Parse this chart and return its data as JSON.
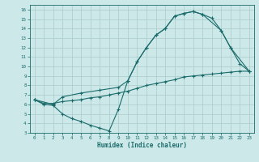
{
  "xlabel": "Humidex (Indice chaleur)",
  "bg_color": "#cce8e8",
  "grid_color": "#aacccc",
  "line_color": "#1a6b6b",
  "xlim": [
    -0.5,
    23.5
  ],
  "ylim": [
    3,
    16.5
  ],
  "xticks": [
    0,
    1,
    2,
    3,
    4,
    5,
    6,
    7,
    8,
    9,
    10,
    11,
    12,
    13,
    14,
    15,
    16,
    17,
    18,
    19,
    20,
    21,
    22,
    23
  ],
  "yticks": [
    3,
    4,
    5,
    6,
    7,
    8,
    9,
    10,
    11,
    12,
    13,
    14,
    15,
    16
  ],
  "curve1_x": [
    0,
    1,
    2,
    3,
    4,
    5,
    6,
    7,
    8,
    9,
    10,
    11,
    12,
    13,
    14,
    15,
    16,
    17,
    18,
    19,
    20,
    21,
    22,
    23
  ],
  "curve1_y": [
    6.5,
    6.0,
    5.9,
    5.0,
    4.5,
    4.2,
    3.8,
    3.5,
    3.2,
    5.5,
    8.5,
    10.5,
    12.0,
    13.3,
    14.0,
    15.3,
    15.6,
    15.8,
    15.5,
    15.1,
    13.8,
    12.0,
    10.3,
    9.5
  ],
  "curve2_x": [
    0,
    2,
    3,
    5,
    7,
    9,
    10,
    11,
    12,
    13,
    14,
    15,
    16,
    17,
    18,
    20,
    21,
    23
  ],
  "curve2_y": [
    6.5,
    6.0,
    6.8,
    7.2,
    7.5,
    7.8,
    8.5,
    10.5,
    12.0,
    13.3,
    14.0,
    15.3,
    15.6,
    15.8,
    15.5,
    13.8,
    12.0,
    9.5
  ],
  "curve3_x": [
    0,
    1,
    2,
    3,
    4,
    5,
    6,
    7,
    8,
    9,
    10,
    11,
    12,
    13,
    14,
    15,
    16,
    17,
    18,
    19,
    20,
    21,
    22,
    23
  ],
  "curve3_y": [
    6.5,
    6.1,
    6.1,
    6.3,
    6.4,
    6.5,
    6.7,
    6.8,
    7.0,
    7.2,
    7.4,
    7.7,
    8.0,
    8.2,
    8.4,
    8.6,
    8.9,
    9.0,
    9.1,
    9.2,
    9.3,
    9.4,
    9.5,
    9.5
  ]
}
